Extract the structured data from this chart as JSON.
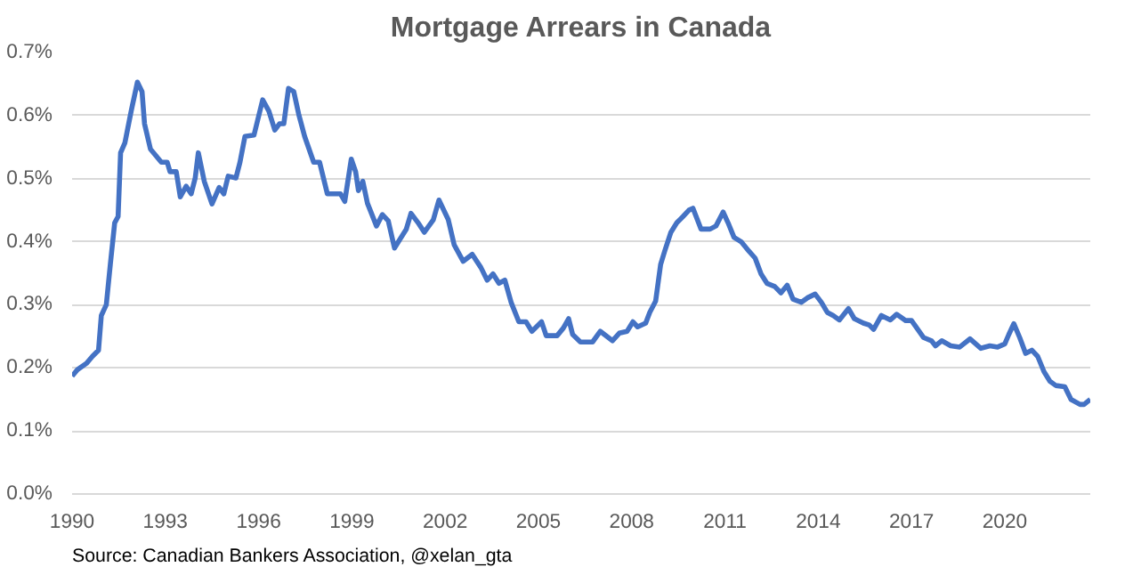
{
  "chart_data": {
    "type": "line",
    "title": "Mortgage Arrears in Canada",
    "annotations": [
      "Source: Canadian Bankers Association, @xelan_gta"
    ],
    "xlim": [
      1990,
      2022.75
    ],
    "xticks": [
      1990,
      1993,
      1996,
      1999,
      2002,
      2005,
      2008,
      2011,
      2014,
      2017,
      2020
    ],
    "ylim": [
      0,
      0.7
    ],
    "yticks": [
      {
        "value": 0,
        "label": "0.0%"
      },
      {
        "value": 0.1,
        "label": "0.1%"
      },
      {
        "value": 0.2,
        "label": "0.2%"
      },
      {
        "value": 0.3,
        "label": "0.3%"
      },
      {
        "value": 0.4,
        "label": "0.4%"
      },
      {
        "value": 0.5,
        "label": "0.5%"
      },
      {
        "value": 0.6,
        "label": "0.6%"
      },
      {
        "value": 0.7,
        "label": "0.7%"
      }
    ],
    "grid": "y",
    "marker": "none",
    "line_style": "solid",
    "series": [
      {
        "color": "#4472c4",
        "x": [
          1990.0,
          1990.17,
          1990.46,
          1990.65,
          1990.85,
          1990.94,
          1991.1,
          1991.23,
          1991.37,
          1991.48,
          1991.56,
          1991.7,
          1991.9,
          1992.1,
          1992.25,
          1992.33,
          1992.52,
          1992.87,
          1993.06,
          1993.15,
          1993.35,
          1993.48,
          1993.67,
          1993.83,
          1993.96,
          1994.06,
          1994.25,
          1994.5,
          1994.73,
          1994.88,
          1995.02,
          1995.27,
          1995.4,
          1995.56,
          1995.85,
          1996.13,
          1996.33,
          1996.52,
          1996.67,
          1996.81,
          1996.96,
          1997.13,
          1997.29,
          1997.48,
          1997.77,
          1997.96,
          1998.21,
          1998.63,
          1998.77,
          1998.98,
          1999.12,
          1999.21,
          1999.35,
          1999.5,
          1999.79,
          1999.98,
          2000.17,
          2000.37,
          2000.56,
          2000.75,
          2000.9,
          2001.13,
          2001.33,
          2001.62,
          2001.8,
          2002.1,
          2002.29,
          2002.58,
          2002.87,
          2003.15,
          2003.35,
          2003.54,
          2003.73,
          2003.92,
          2004.12,
          2004.37,
          2004.6,
          2004.79,
          2005.1,
          2005.25,
          2005.6,
          2005.8,
          2005.97,
          2006.1,
          2006.35,
          2006.74,
          2006.99,
          2007.38,
          2007.6,
          2007.85,
          2008.04,
          2008.19,
          2008.45,
          2008.58,
          2008.77,
          2008.93,
          2009.06,
          2009.26,
          2009.45,
          2009.65,
          2009.84,
          2009.97,
          2010.23,
          2010.52,
          2010.71,
          2010.94,
          2011.1,
          2011.29,
          2011.52,
          2011.77,
          2011.97,
          2012.16,
          2012.35,
          2012.6,
          2012.8,
          2013.0,
          2013.19,
          2013.46,
          2013.65,
          2013.9,
          2014.1,
          2014.29,
          2014.48,
          2014.68,
          2014.97,
          2015.16,
          2015.45,
          2015.64,
          2015.78,
          2016.03,
          2016.32,
          2016.52,
          2016.81,
          2017.0,
          2017.39,
          2017.64,
          2017.77,
          2017.97,
          2018.26,
          2018.55,
          2018.88,
          2019.23,
          2019.52,
          2019.77,
          2020.0,
          2020.13,
          2020.29,
          2020.48,
          2020.67,
          2020.87,
          2021.06,
          2021.26,
          2021.45,
          2021.64,
          2021.93,
          2022.13,
          2022.42,
          2022.55,
          2022.75
        ],
        "values": [
          0.187,
          0.197,
          0.207,
          0.218,
          0.228,
          0.283,
          0.3,
          0.364,
          0.43,
          0.44,
          0.541,
          0.557,
          0.607,
          0.653,
          0.638,
          0.587,
          0.547,
          0.526,
          0.526,
          0.511,
          0.511,
          0.471,
          0.488,
          0.476,
          0.501,
          0.541,
          0.496,
          0.46,
          0.486,
          0.476,
          0.504,
          0.501,
          0.526,
          0.567,
          0.569,
          0.625,
          0.607,
          0.577,
          0.587,
          0.587,
          0.643,
          0.638,
          0.602,
          0.567,
          0.526,
          0.526,
          0.476,
          0.476,
          0.464,
          0.531,
          0.511,
          0.481,
          0.496,
          0.461,
          0.425,
          0.443,
          0.433,
          0.39,
          0.405,
          0.42,
          0.445,
          0.43,
          0.415,
          0.435,
          0.466,
          0.435,
          0.395,
          0.369,
          0.38,
          0.359,
          0.339,
          0.349,
          0.334,
          0.339,
          0.304,
          0.273,
          0.273,
          0.258,
          0.273,
          0.251,
          0.251,
          0.263,
          0.278,
          0.253,
          0.241,
          0.241,
          0.258,
          0.243,
          0.255,
          0.258,
          0.273,
          0.265,
          0.271,
          0.288,
          0.306,
          0.364,
          0.385,
          0.415,
          0.43,
          0.44,
          0.45,
          0.453,
          0.42,
          0.42,
          0.425,
          0.447,
          0.43,
          0.407,
          0.4,
          0.385,
          0.374,
          0.349,
          0.334,
          0.329,
          0.319,
          0.331,
          0.309,
          0.304,
          0.311,
          0.317,
          0.304,
          0.288,
          0.283,
          0.276,
          0.294,
          0.278,
          0.271,
          0.268,
          0.261,
          0.283,
          0.276,
          0.285,
          0.275,
          0.275,
          0.248,
          0.243,
          0.235,
          0.243,
          0.235,
          0.233,
          0.246,
          0.231,
          0.235,
          0.233,
          0.238,
          0.253,
          0.27,
          0.248,
          0.223,
          0.228,
          0.218,
          0.194,
          0.179,
          0.172,
          0.17,
          0.15,
          0.142,
          0.142,
          0.15
        ]
      }
    ]
  }
}
